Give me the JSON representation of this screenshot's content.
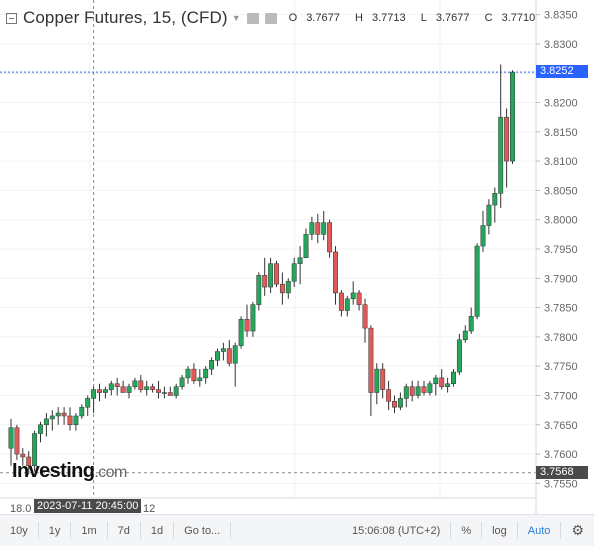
{
  "header": {
    "title": "Copper Futures, 15, (CFD)",
    "open_label": "O",
    "open": "3.7677",
    "high_label": "H",
    "high": "3.7713",
    "low_label": "L",
    "low": "3.7677",
    "close_label": "C",
    "close": "3.7710"
  },
  "watermark": {
    "brand": "Investing",
    "suffix": ".com"
  },
  "crosshair": {
    "time_label": "2023-07-11 20:45:00",
    "price_label": "3.8252"
  },
  "last_price_label": "3.7568",
  "x_axis_labels": [
    "18.0",
    "12"
  ],
  "toolbar": {
    "ranges": [
      "10y",
      "1y",
      "1m",
      "7d",
      "1d"
    ],
    "goto_label": "Go to...",
    "clock": "15:06:08 (UTC+2)",
    "percent_label": "%",
    "log_label": "log",
    "auto_label": "Auto",
    "settings_icon": "gear-icon"
  },
  "colors": {
    "up": "#26a65b",
    "down": "#e05a5a",
    "crosshair_tag": "#2962ff",
    "last_tag": "#4a4a4a"
  },
  "chart_data": {
    "type": "candlestick",
    "title": "Copper Futures, 15, (CFD)",
    "ylim": [
      3.7525,
      3.8375
    ],
    "y_ticks": [
      3.835,
      3.83,
      3.825,
      3.82,
      3.815,
      3.81,
      3.805,
      3.8,
      3.795,
      3.79,
      3.785,
      3.78,
      3.775,
      3.77,
      3.765,
      3.76,
      3.755
    ],
    "crosshair_price": 3.8252,
    "crosshair_candle_index": 14,
    "last_price": 3.7568,
    "candles": [
      [
        3.761,
        3.766,
        3.758,
        3.7645
      ],
      [
        3.7645,
        3.765,
        3.759,
        3.76
      ],
      [
        3.76,
        3.761,
        3.758,
        3.7595
      ],
      [
        3.7595,
        3.7605,
        3.7565,
        3.758
      ],
      [
        3.758,
        3.764,
        3.757,
        3.7635
      ],
      [
        3.7635,
        3.7655,
        3.762,
        3.765
      ],
      [
        3.765,
        3.767,
        3.763,
        3.766
      ],
      [
        3.766,
        3.7675,
        3.764,
        3.7665
      ],
      [
        3.7665,
        3.768,
        3.765,
        3.767
      ],
      [
        3.767,
        3.768,
        3.765,
        3.7665
      ],
      [
        3.7665,
        3.768,
        3.764,
        3.765
      ],
      [
        3.765,
        3.767,
        3.764,
        3.7665
      ],
      [
        3.7665,
        3.7685,
        3.766,
        3.768
      ],
      [
        3.768,
        3.77,
        3.7665,
        3.7695
      ],
      [
        3.7695,
        3.7715,
        3.767,
        3.771
      ],
      [
        3.771,
        3.772,
        3.769,
        3.7705
      ],
      [
        3.7705,
        3.7715,
        3.7695,
        3.771
      ],
      [
        3.771,
        3.7725,
        3.77,
        3.772
      ],
      [
        3.772,
        3.773,
        3.77,
        3.7715
      ],
      [
        3.7715,
        3.7725,
        3.7705,
        3.7705
      ],
      [
        3.7705,
        3.772,
        3.7695,
        3.7715
      ],
      [
        3.7715,
        3.773,
        3.771,
        3.7725
      ],
      [
        3.7725,
        3.7735,
        3.7705,
        3.771
      ],
      [
        3.771,
        3.7725,
        3.77,
        3.7715
      ],
      [
        3.7715,
        3.772,
        3.7705,
        3.771
      ],
      [
        3.771,
        3.7725,
        3.7695,
        3.7705
      ],
      [
        3.7705,
        3.7715,
        3.7695,
        3.7705
      ],
      [
        3.7705,
        3.7715,
        3.77,
        3.77
      ],
      [
        3.77,
        3.772,
        3.7695,
        3.7715
      ],
      [
        3.7715,
        3.7735,
        3.771,
        3.773
      ],
      [
        3.773,
        3.775,
        3.772,
        3.7745
      ],
      [
        3.7745,
        3.7755,
        3.772,
        3.7725
      ],
      [
        3.7725,
        3.7745,
        3.7715,
        3.773
      ],
      [
        3.773,
        3.775,
        3.772,
        3.7745
      ],
      [
        3.7745,
        3.7765,
        3.7735,
        3.776
      ],
      [
        3.776,
        3.778,
        3.775,
        3.7775
      ],
      [
        3.7775,
        3.779,
        3.776,
        3.778
      ],
      [
        3.778,
        3.7795,
        3.775,
        3.7755
      ],
      [
        3.7755,
        3.779,
        3.7715,
        3.7785
      ],
      [
        3.7785,
        3.7835,
        3.778,
        3.783
      ],
      [
        3.783,
        3.7855,
        3.78,
        3.781
      ],
      [
        3.781,
        3.786,
        3.78,
        3.7855
      ],
      [
        3.7855,
        3.791,
        3.7845,
        3.7905
      ],
      [
        3.7905,
        3.7935,
        3.787,
        3.7885
      ],
      [
        3.7885,
        3.7935,
        3.7875,
        3.7925
      ],
      [
        3.7925,
        3.793,
        3.7885,
        3.789
      ],
      [
        3.789,
        3.791,
        3.7855,
        3.7875
      ],
      [
        3.7875,
        3.79,
        3.7865,
        3.7895
      ],
      [
        3.7895,
        3.7935,
        3.7885,
        3.7925
      ],
      [
        3.7925,
        3.7955,
        3.789,
        3.7935
      ],
      [
        3.7935,
        3.7985,
        3.7935,
        3.7975
      ],
      [
        3.7975,
        3.8005,
        3.7965,
        3.7995
      ],
      [
        3.7995,
        3.801,
        3.796,
        3.7975
      ],
      [
        3.7975,
        3.8015,
        3.7965,
        3.7995
      ],
      [
        3.7995,
        3.8,
        3.7935,
        3.7945
      ],
      [
        3.7945,
        3.7955,
        3.7855,
        3.7875
      ],
      [
        3.7875,
        3.788,
        3.7835,
        3.7845
      ],
      [
        3.7845,
        3.787,
        3.7835,
        3.7865
      ],
      [
        3.7865,
        3.7895,
        3.7855,
        3.7875
      ],
      [
        3.7875,
        3.788,
        3.7845,
        3.7855
      ],
      [
        3.7855,
        3.7865,
        3.779,
        3.7815
      ],
      [
        3.7815,
        3.782,
        3.7665,
        3.7705
      ],
      [
        3.7705,
        3.7755,
        3.7685,
        3.7745
      ],
      [
        3.7745,
        3.7755,
        3.7695,
        3.771
      ],
      [
        3.771,
        3.7725,
        3.7675,
        3.769
      ],
      [
        3.769,
        3.77,
        3.767,
        3.768
      ],
      [
        3.768,
        3.7705,
        3.7675,
        3.7695
      ],
      [
        3.7695,
        3.772,
        3.768,
        3.7715
      ],
      [
        3.7715,
        3.7725,
        3.769,
        3.77
      ],
      [
        3.77,
        3.7725,
        3.7695,
        3.7715
      ],
      [
        3.7715,
        3.7725,
        3.77,
        3.7705
      ],
      [
        3.7705,
        3.7725,
        3.77,
        3.772
      ],
      [
        3.772,
        3.7735,
        3.77,
        3.773
      ],
      [
        3.773,
        3.7745,
        3.771,
        3.7715
      ],
      [
        3.7715,
        3.773,
        3.7705,
        3.772
      ],
      [
        3.772,
        3.7745,
        3.7715,
        3.774
      ],
      [
        3.774,
        3.7805,
        3.7735,
        3.7795
      ],
      [
        3.7795,
        3.782,
        3.779,
        3.781
      ],
      [
        3.781,
        3.785,
        3.7805,
        3.7835
      ],
      [
        3.7835,
        3.796,
        3.783,
        3.7955
      ],
      [
        3.7955,
        3.8015,
        3.7945,
        3.799
      ],
      [
        3.799,
        3.8035,
        3.7975,
        3.8025
      ],
      [
        3.8025,
        3.8055,
        3.7995,
        3.8045
      ],
      [
        3.8045,
        3.8265,
        3.802,
        3.8175
      ],
      [
        3.8175,
        3.819,
        3.8055,
        3.81
      ],
      [
        3.81,
        3.8255,
        3.8095,
        3.8252
      ]
    ]
  }
}
